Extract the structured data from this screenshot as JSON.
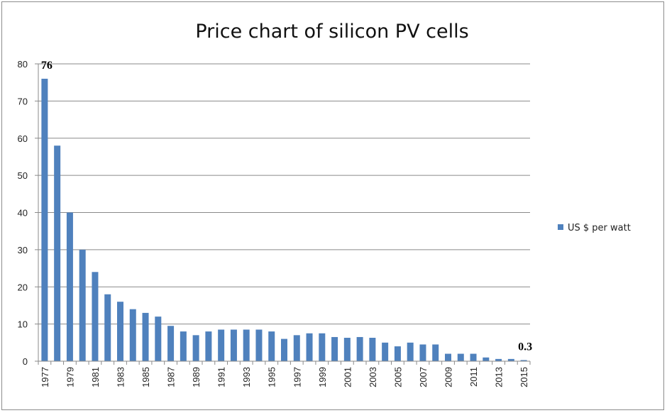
{
  "chart_data": {
    "type": "bar",
    "title": "Price chart of silicon PV cells",
    "xlabel": "",
    "ylabel": "",
    "ylim": [
      0,
      80
    ],
    "yticks": [
      0,
      10,
      20,
      30,
      40,
      50,
      60,
      70,
      80
    ],
    "grid": true,
    "legend_position": "right",
    "categories": [
      1977,
      1978,
      1979,
      1980,
      1981,
      1982,
      1983,
      1984,
      1985,
      1986,
      1987,
      1988,
      1989,
      1990,
      1991,
      1992,
      1993,
      1994,
      1995,
      1996,
      1997,
      1998,
      1999,
      2000,
      2001,
      2002,
      2003,
      2004,
      2005,
      2006,
      2007,
      2008,
      2009,
      2010,
      2011,
      2012,
      2013,
      2014,
      2015
    ],
    "tick_labels": [
      "1977",
      "1979",
      "1981",
      "1983",
      "1985",
      "1987",
      "1989",
      "1991",
      "1993",
      "1995",
      "1997",
      "1999",
      "2001",
      "2003",
      "2005",
      "2007",
      "2009",
      "2011",
      "2013",
      "2015"
    ],
    "series": [
      {
        "name": "US $ per watt",
        "color": "#4f81bd",
        "values": [
          76,
          58,
          40,
          30,
          24,
          18,
          16,
          14,
          13,
          12,
          9.5,
          8,
          7,
          8,
          8.5,
          8.5,
          8.5,
          8.5,
          8,
          6,
          7,
          7.5,
          7.5,
          6.5,
          6.3,
          6.5,
          6.3,
          5,
          4,
          5,
          4.5,
          4.5,
          2,
          2,
          2,
          1,
          0.6,
          0.6,
          0.3
        ]
      }
    ],
    "data_labels": [
      {
        "category": 1977,
        "text": "76"
      },
      {
        "category": 2015,
        "text": "0.3"
      }
    ]
  }
}
